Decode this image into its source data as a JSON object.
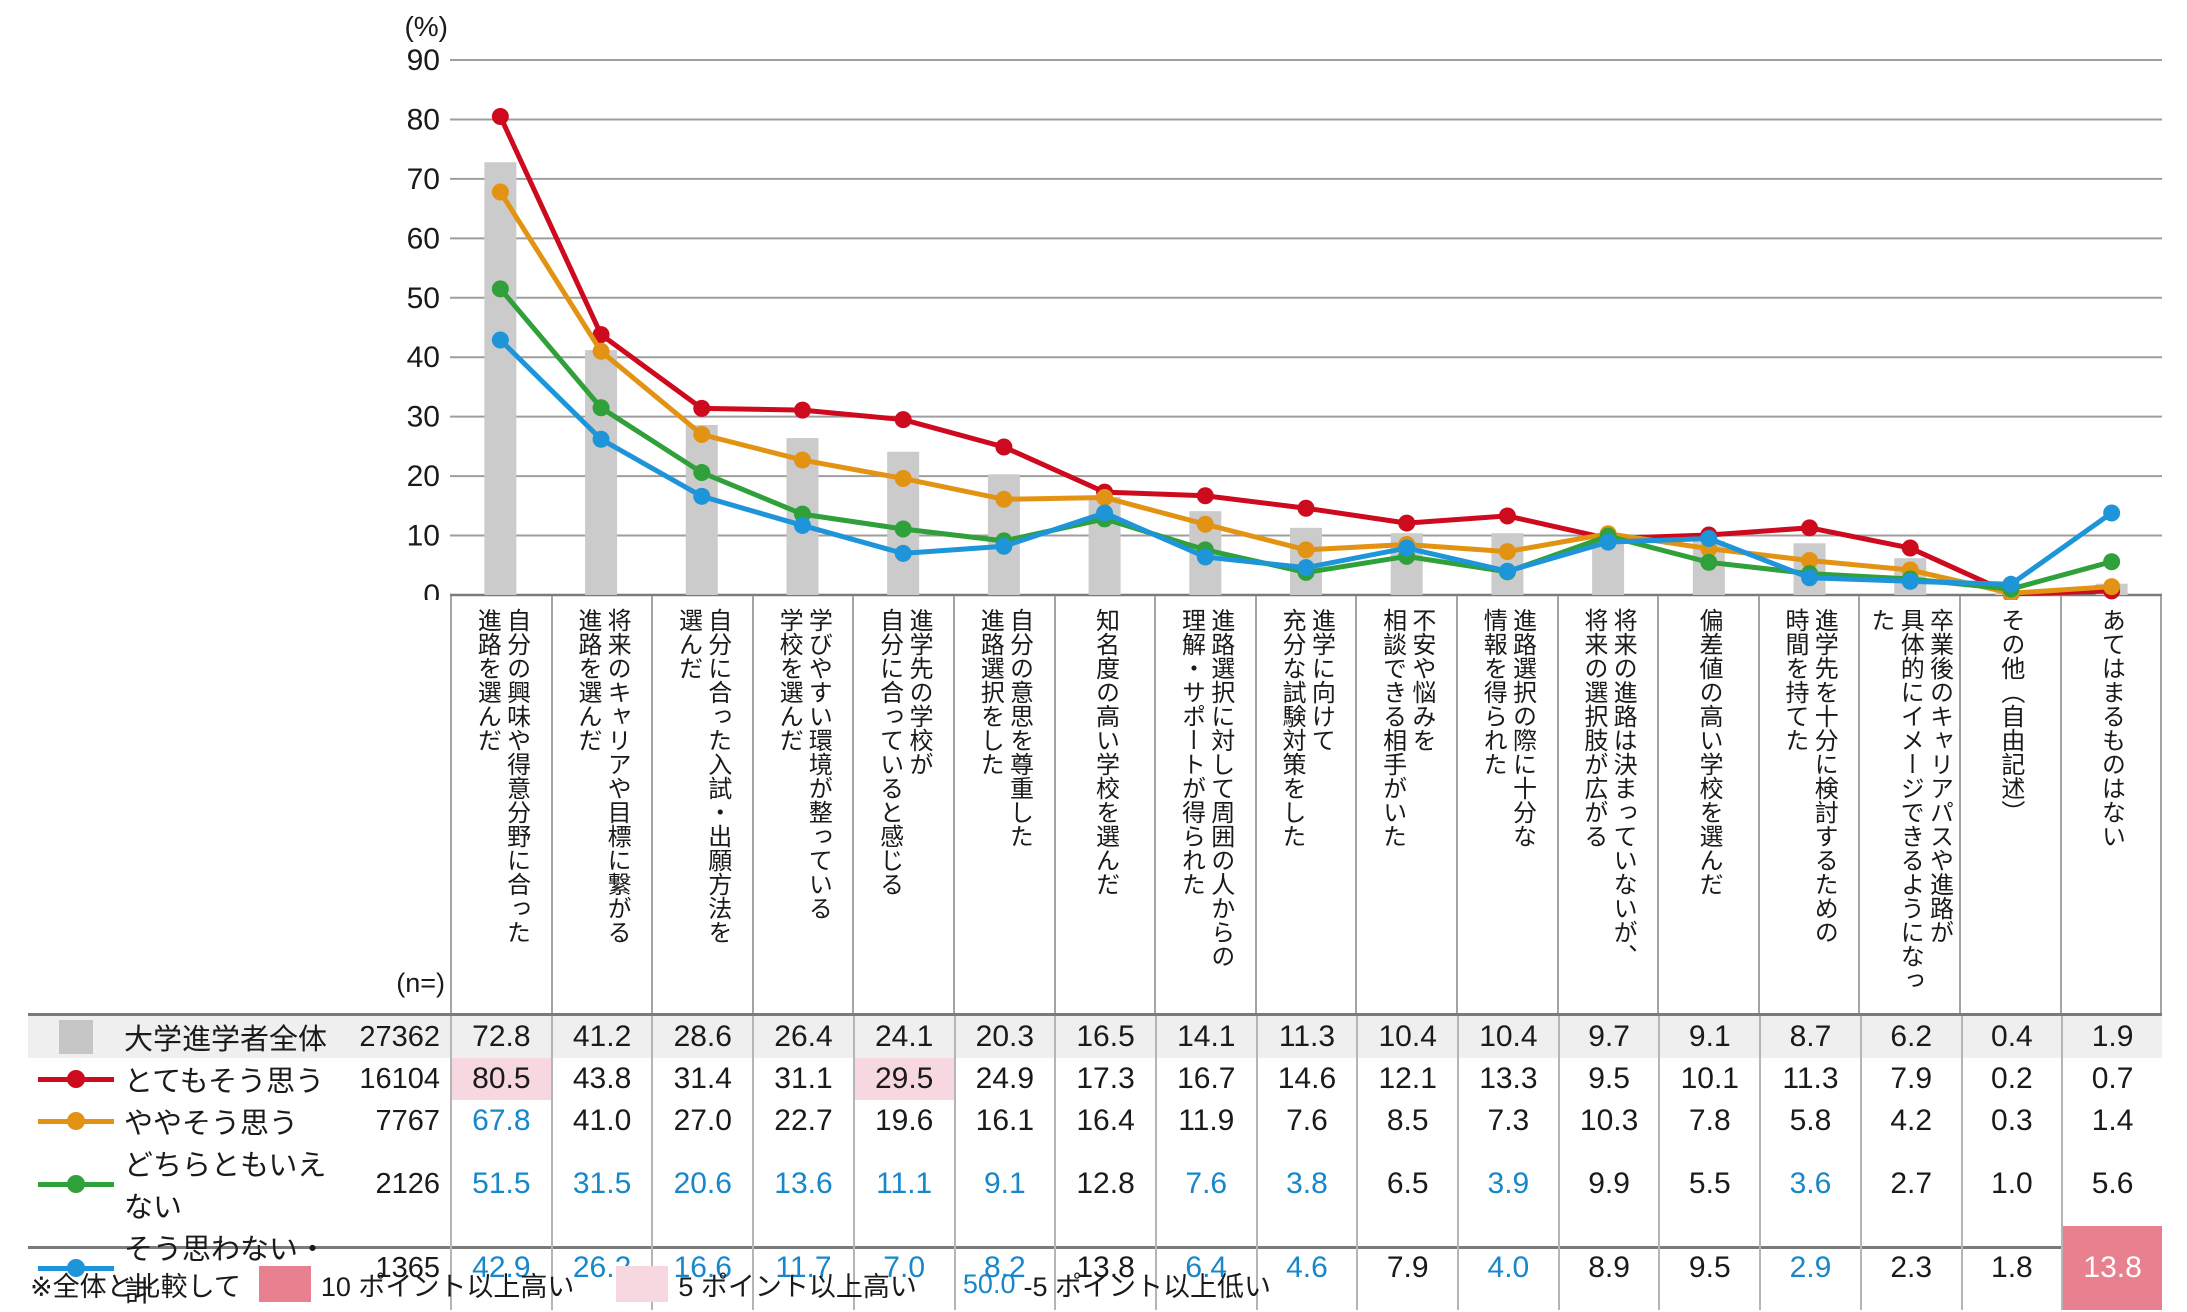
{
  "axis": {
    "unit_label": "(%)",
    "yticks": [
      0,
      10,
      20,
      30,
      40,
      50,
      60,
      70,
      80,
      90
    ],
    "n_header": "(n=)"
  },
  "chart_data": {
    "type": "combo",
    "title": "",
    "ylabel": "(%)",
    "ylim": [
      0,
      90
    ],
    "grid": true,
    "categories": [
      "自分の興味や得意分野に合った\n進路を選んだ",
      "将来のキャリアや目標に繋がる\n進路を選んだ",
      "自分に合った入試・出願方法を\n選んだ",
      "学びやすい環境が整っている\n学校を選んだ",
      "進学先の学校が\n自分に合っていると感じる",
      "自分の意思を尊重した\n進路選択をした",
      "知名度の高い学校を選んだ",
      "進路選択に対して周囲の人からの\n理解・サポートが得られた",
      "進学に向けて\n充分な試験対策をした",
      "不安や悩みを\n相談できる相手がいた",
      "進路選択の際に十分な\n情報を得られた",
      "将来の進路は決まっていないが、\n将来の選択肢が広がる",
      "偏差値の高い学校を選んだ",
      "進学先を十分に検討するための\n時間を持てた",
      "卒業後のキャリアパスや進路が\n具体的にイメージできるようになった",
      "その他（自由記述）",
      "あてはまるものはない"
    ],
    "bar_series": {
      "name": "大学進学者全体",
      "n": 27362,
      "color": "#cbcbcb",
      "values": [
        72.8,
        41.2,
        28.6,
        26.4,
        24.1,
        20.3,
        16.5,
        14.1,
        11.3,
        10.4,
        10.4,
        9.7,
        9.1,
        8.7,
        6.2,
        0.4,
        1.9
      ]
    },
    "line_series": [
      {
        "name": "とてもそう思う",
        "n": 16104,
        "color": "#cd0a1e",
        "values": [
          80.5,
          43.8,
          31.4,
          31.1,
          29.5,
          24.9,
          17.3,
          16.7,
          14.6,
          12.1,
          13.3,
          9.5,
          10.1,
          11.3,
          7.9,
          0.2,
          0.7
        ]
      },
      {
        "name": "ややそう思う",
        "n": 7767,
        "color": "#e39314",
        "values": [
          67.8,
          41.0,
          27.0,
          22.7,
          19.6,
          16.1,
          16.4,
          11.9,
          7.6,
          8.5,
          7.3,
          10.3,
          7.8,
          5.8,
          4.2,
          0.3,
          1.4
        ]
      },
      {
        "name": "どちらともいえない",
        "n": 2126,
        "color": "#2fa03a",
        "values": [
          51.5,
          31.5,
          20.6,
          13.6,
          11.1,
          9.1,
          12.8,
          7.6,
          3.8,
          6.5,
          3.9,
          9.9,
          5.5,
          3.6,
          2.7,
          1.0,
          5.6
        ]
      },
      {
        "name": "そう思わない・計",
        "n": 1365,
        "color": "#1e95d8",
        "values": [
          42.9,
          26.2,
          16.6,
          11.7,
          7.0,
          8.2,
          13.8,
          6.4,
          4.6,
          7.9,
          4.0,
          8.9,
          9.5,
          2.9,
          2.3,
          1.8,
          13.8
        ]
      }
    ]
  },
  "table": {
    "rows": [
      {
        "key": "overall",
        "marker": "square",
        "color": "#c6c6c6",
        "label": "大学進学者全体",
        "n": "27362",
        "values": [
          "72.8",
          "41.2",
          "28.6",
          "26.4",
          "24.1",
          "20.3",
          "16.5",
          "14.1",
          "11.3",
          "10.4",
          "10.4",
          "9.7",
          "9.1",
          "8.7",
          "6.2",
          "0.4",
          "1.9"
        ],
        "styles": [
          null,
          null,
          null,
          null,
          null,
          null,
          null,
          null,
          null,
          null,
          null,
          null,
          null,
          null,
          null,
          null,
          null
        ]
      },
      {
        "key": "strongly-agree",
        "marker": "line",
        "color": "#cd0a1e",
        "label": "とてもそう思う",
        "n": "16104",
        "values": [
          "80.5",
          "43.8",
          "31.4",
          "31.1",
          "29.5",
          "24.9",
          "17.3",
          "16.7",
          "14.6",
          "12.1",
          "13.3",
          "9.5",
          "10.1",
          "11.3",
          "7.9",
          "0.2",
          "0.7"
        ],
        "styles": [
          "pink5",
          null,
          null,
          null,
          "pink5",
          null,
          null,
          null,
          null,
          null,
          null,
          null,
          null,
          null,
          null,
          null,
          null
        ]
      },
      {
        "key": "somewhat-agree",
        "marker": "line",
        "color": "#e39314",
        "label": "ややそう思う",
        "n": "7767",
        "values": [
          "67.8",
          "41.0",
          "27.0",
          "22.7",
          "19.6",
          "16.1",
          "16.4",
          "11.9",
          "7.6",
          "8.5",
          "7.3",
          "10.3",
          "7.8",
          "5.8",
          "4.2",
          "0.3",
          "1.4"
        ],
        "styles": [
          "blue",
          null,
          null,
          null,
          null,
          null,
          null,
          null,
          null,
          null,
          null,
          null,
          null,
          null,
          null,
          null,
          null
        ]
      },
      {
        "key": "neither",
        "marker": "line",
        "color": "#2fa03a",
        "label": "どちらともいえない",
        "n": "2126",
        "values": [
          "51.5",
          "31.5",
          "20.6",
          "13.6",
          "11.1",
          "9.1",
          "12.8",
          "7.6",
          "3.8",
          "6.5",
          "3.9",
          "9.9",
          "5.5",
          "3.6",
          "2.7",
          "1.0",
          "5.6"
        ],
        "styles": [
          "blue",
          "blue",
          "blue",
          "blue",
          "blue",
          "blue",
          null,
          "blue",
          "blue",
          null,
          "blue",
          null,
          null,
          "blue",
          null,
          null,
          null
        ]
      },
      {
        "key": "disagree-total",
        "marker": "line",
        "color": "#1e95d8",
        "label": "そう思わない・計",
        "n": "1365",
        "values": [
          "42.9",
          "26.2",
          "16.6",
          "11.7",
          "7.0",
          "8.2",
          "13.8",
          "6.4",
          "4.6",
          "7.9",
          "4.0",
          "8.9",
          "9.5",
          "2.9",
          "2.3",
          "1.8",
          "13.8"
        ],
        "styles": [
          "blue",
          "blue",
          "blue",
          "blue",
          "blue",
          "blue",
          null,
          "blue",
          "blue",
          null,
          "blue",
          null,
          null,
          "blue",
          null,
          null,
          "red10"
        ]
      }
    ]
  },
  "footer": {
    "prefix": "※全体と比較して",
    "high10_label": "10 ポイント以上高い",
    "high5_label": "5 ポイント以上高い",
    "low_sample": "50.0",
    "low_label": "-5 ポイント以上低い"
  },
  "colors": {
    "pink10": "#e8808f",
    "pink5": "#f8d8e0",
    "blue_text": "#1787c9",
    "gridline": "#9e9e9e",
    "bar": "#cbcbcb"
  }
}
